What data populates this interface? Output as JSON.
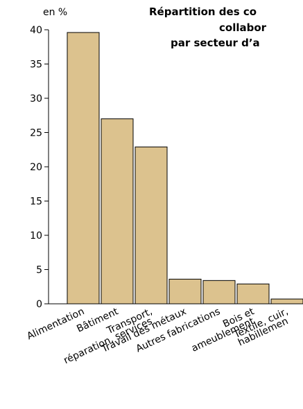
{
  "chart_data": {
    "type": "bar",
    "title": [
      "Répartition des co",
      "collabor",
      "par secteur d’a"
    ],
    "y_label": "en %",
    "categories": [
      [
        "Alimentation"
      ],
      [
        "Bâtiment"
      ],
      [
        "Transport,",
        "réparation, services"
      ],
      [
        "Travail des métaux"
      ],
      [
        "Autres fabrications"
      ],
      [
        "Bois et",
        "ameublement"
      ],
      [
        "Textile, cuir,",
        "habillemen"
      ]
    ],
    "values": [
      39.6,
      27,
      22.9,
      3.6,
      3.4,
      2.9,
      0.7
    ],
    "color": "#dcc28e",
    "ylim": [
      0,
      40
    ],
    "yticks": [
      0,
      5,
      10,
      15,
      20,
      25,
      30,
      35,
      40
    ]
  }
}
